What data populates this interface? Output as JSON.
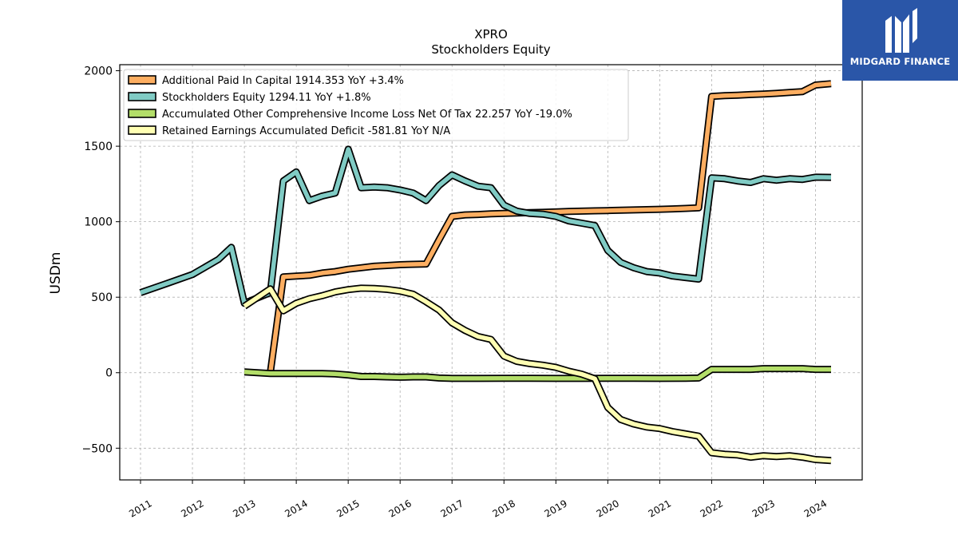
{
  "brand": {
    "name": "MIDGARD FINANCE",
    "logo_icon": "midgard-m-logo-icon",
    "bg_color": "#2a56a8"
  },
  "chart_data": {
    "type": "line",
    "title": "XPRO",
    "subtitle": "Stockholders  Equity",
    "ylabel": "USDm",
    "xlabel": "",
    "xlim": [
      2010.6,
      2024.9
    ],
    "ylim": [
      -710,
      2040
    ],
    "x_ticks": [
      2011,
      2012,
      2013,
      2014,
      2015,
      2016,
      2017,
      2018,
      2019,
      2020,
      2021,
      2022,
      2023,
      2024
    ],
    "x_tick_labels": [
      "2011",
      "2012",
      "2013",
      "2014",
      "2015",
      "2016",
      "2017",
      "2018",
      "2019",
      "2020",
      "2021",
      "2022",
      "2023",
      "2024"
    ],
    "y_ticks": [
      -500,
      0,
      500,
      1000,
      1500,
      2000
    ],
    "y_tick_labels": [
      "−500",
      "0",
      "500",
      "1000",
      "1500",
      "2000"
    ],
    "grid": true,
    "legend_position": "top-left",
    "series": [
      {
        "name": "Additional Paid In Capital",
        "legend": "Additional Paid In Capital  1914.353 YoY +3.4%",
        "color": "#fdae61",
        "points": [
          [
            2013.5,
            0
          ],
          [
            2013.75,
            635
          ],
          [
            2014.0,
            640
          ],
          [
            2014.25,
            645
          ],
          [
            2014.5,
            660
          ],
          [
            2014.75,
            670
          ],
          [
            2015.0,
            685
          ],
          [
            2015.25,
            695
          ],
          [
            2015.5,
            705
          ],
          [
            2015.75,
            710
          ],
          [
            2016.0,
            715
          ],
          [
            2016.25,
            718
          ],
          [
            2016.5,
            720
          ],
          [
            2016.75,
            880
          ],
          [
            2017.0,
            1035
          ],
          [
            2017.25,
            1045
          ],
          [
            2017.5,
            1048
          ],
          [
            2017.75,
            1052
          ],
          [
            2018.0,
            1055
          ],
          [
            2018.25,
            1058
          ],
          [
            2018.5,
            1060
          ],
          [
            2018.75,
            1062
          ],
          [
            2019.0,
            1065
          ],
          [
            2019.25,
            1068
          ],
          [
            2019.5,
            1070
          ],
          [
            2019.75,
            1072
          ],
          [
            2020.0,
            1074
          ],
          [
            2020.25,
            1076
          ],
          [
            2020.5,
            1078
          ],
          [
            2020.75,
            1080
          ],
          [
            2021.0,
            1082
          ],
          [
            2021.25,
            1085
          ],
          [
            2021.5,
            1088
          ],
          [
            2021.75,
            1092
          ],
          [
            2022.0,
            1830
          ],
          [
            2022.25,
            1835
          ],
          [
            2022.5,
            1838
          ],
          [
            2022.75,
            1842
          ],
          [
            2023.0,
            1846
          ],
          [
            2023.25,
            1850
          ],
          [
            2023.5,
            1856
          ],
          [
            2023.75,
            1862
          ],
          [
            2024.0,
            1905
          ],
          [
            2024.3,
            1914
          ]
        ]
      },
      {
        "name": "Stockholders Equity",
        "legend": "Stockholders Equity  1294.11 YoY +1.8%",
        "color": "#80cbc4",
        "points": [
          [
            2011.0,
            530
          ],
          [
            2011.5,
            590
          ],
          [
            2012.0,
            650
          ],
          [
            2012.5,
            750
          ],
          [
            2012.75,
            830
          ],
          [
            2013.0,
            460
          ],
          [
            2013.5,
            530
          ],
          [
            2013.75,
            1270
          ],
          [
            2014.0,
            1330
          ],
          [
            2014.25,
            1140
          ],
          [
            2014.5,
            1170
          ],
          [
            2014.75,
            1190
          ],
          [
            2015.0,
            1480
          ],
          [
            2015.25,
            1225
          ],
          [
            2015.5,
            1230
          ],
          [
            2015.75,
            1225
          ],
          [
            2016.0,
            1210
          ],
          [
            2016.25,
            1190
          ],
          [
            2016.5,
            1140
          ],
          [
            2016.75,
            1240
          ],
          [
            2017.0,
            1310
          ],
          [
            2017.25,
            1270
          ],
          [
            2017.5,
            1235
          ],
          [
            2017.75,
            1225
          ],
          [
            2018.0,
            1110
          ],
          [
            2018.25,
            1070
          ],
          [
            2018.5,
            1055
          ],
          [
            2018.75,
            1050
          ],
          [
            2019.0,
            1035
          ],
          [
            2019.25,
            1005
          ],
          [
            2019.5,
            990
          ],
          [
            2019.75,
            975
          ],
          [
            2020.0,
            810
          ],
          [
            2020.25,
            730
          ],
          [
            2020.5,
            695
          ],
          [
            2020.75,
            670
          ],
          [
            2021.0,
            660
          ],
          [
            2021.25,
            640
          ],
          [
            2021.5,
            630
          ],
          [
            2021.75,
            620
          ],
          [
            2022.0,
            1290
          ],
          [
            2022.25,
            1285
          ],
          [
            2022.5,
            1270
          ],
          [
            2022.75,
            1260
          ],
          [
            2023.0,
            1285
          ],
          [
            2023.25,
            1275
          ],
          [
            2023.5,
            1285
          ],
          [
            2023.75,
            1280
          ],
          [
            2024.0,
            1295
          ],
          [
            2024.3,
            1294
          ]
        ]
      },
      {
        "name": "Accumulated Other Comprehensive Income Loss Net Of Tax",
        "legend": "Accumulated Other Comprehensive Income Loss Net Of Tax  22.257 YoY -19.0%",
        "color": "#b3de69",
        "points": [
          [
            2013.0,
            5
          ],
          [
            2013.5,
            -5
          ],
          [
            2014.0,
            -5
          ],
          [
            2014.5,
            -5
          ],
          [
            2014.75,
            -8
          ],
          [
            2015.0,
            -15
          ],
          [
            2015.25,
            -25
          ],
          [
            2015.5,
            -25
          ],
          [
            2015.75,
            -28
          ],
          [
            2016.0,
            -30
          ],
          [
            2016.25,
            -28
          ],
          [
            2016.5,
            -28
          ],
          [
            2016.75,
            -35
          ],
          [
            2017.0,
            -38
          ],
          [
            2017.5,
            -38
          ],
          [
            2018.0,
            -37
          ],
          [
            2018.5,
            -37
          ],
          [
            2019.0,
            -38
          ],
          [
            2019.5,
            -38
          ],
          [
            2020.0,
            -37
          ],
          [
            2020.5,
            -37
          ],
          [
            2021.0,
            -38
          ],
          [
            2021.5,
            -37
          ],
          [
            2021.75,
            -35
          ],
          [
            2022.0,
            22
          ],
          [
            2022.25,
            22
          ],
          [
            2022.5,
            22
          ],
          [
            2022.75,
            22
          ],
          [
            2023.0,
            27
          ],
          [
            2023.25,
            27
          ],
          [
            2023.5,
            27
          ],
          [
            2023.75,
            27
          ],
          [
            2024.0,
            22
          ],
          [
            2024.3,
            22
          ]
        ]
      },
      {
        "name": "Retained Earnings Accumulated Deficit",
        "legend": "Retained Earnings Accumulated Deficit  -581.81 YoY N/A",
        "color": "#ffffb3",
        "points": [
          [
            2013.0,
            440
          ],
          [
            2013.5,
            555
          ],
          [
            2013.75,
            410
          ],
          [
            2014.0,
            460
          ],
          [
            2014.25,
            490
          ],
          [
            2014.5,
            510
          ],
          [
            2014.75,
            535
          ],
          [
            2015.0,
            550
          ],
          [
            2015.25,
            560
          ],
          [
            2015.5,
            558
          ],
          [
            2015.75,
            552
          ],
          [
            2016.0,
            540
          ],
          [
            2016.25,
            520
          ],
          [
            2016.5,
            470
          ],
          [
            2016.75,
            415
          ],
          [
            2017.0,
            330
          ],
          [
            2017.25,
            280
          ],
          [
            2017.5,
            240
          ],
          [
            2017.75,
            220
          ],
          [
            2018.0,
            110
          ],
          [
            2018.25,
            75
          ],
          [
            2018.5,
            60
          ],
          [
            2018.75,
            50
          ],
          [
            2019.0,
            35
          ],
          [
            2019.25,
            10
          ],
          [
            2019.5,
            -10
          ],
          [
            2019.75,
            -40
          ],
          [
            2020.0,
            -230
          ],
          [
            2020.25,
            -310
          ],
          [
            2020.5,
            -340
          ],
          [
            2020.75,
            -360
          ],
          [
            2021.0,
            -370
          ],
          [
            2021.25,
            -390
          ],
          [
            2021.5,
            -405
          ],
          [
            2021.75,
            -420
          ],
          [
            2022.0,
            -530
          ],
          [
            2022.25,
            -540
          ],
          [
            2022.5,
            -545
          ],
          [
            2022.75,
            -560
          ],
          [
            2023.0,
            -550
          ],
          [
            2023.25,
            -555
          ],
          [
            2023.5,
            -550
          ],
          [
            2023.75,
            -560
          ],
          [
            2024.0,
            -575
          ],
          [
            2024.3,
            -582
          ]
        ]
      }
    ]
  }
}
